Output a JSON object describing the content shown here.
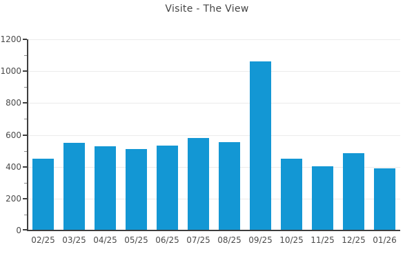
{
  "window": {
    "background": "#ffffff"
  },
  "chart_data": {
    "type": "bar",
    "title": "Visite - The View",
    "categories": [
      "02/25",
      "03/25",
      "04/25",
      "05/25",
      "06/25",
      "07/25",
      "08/25",
      "09/25",
      "10/25",
      "11/25",
      "12/25",
      "01/26"
    ],
    "values": [
      450,
      550,
      530,
      510,
      535,
      580,
      555,
      1060,
      450,
      405,
      485,
      390
    ],
    "xlabel": "",
    "ylabel": "",
    "ylim": [
      0,
      1200
    ],
    "yticks": [
      0,
      200,
      400,
      600,
      800,
      1000,
      1200
    ],
    "minor_tick_step": 100,
    "grid": "horizontal-major",
    "legend": "none",
    "colors": {
      "bar": "#1397d4",
      "axis": "#3d3d3d",
      "grid": "#ebebeb",
      "minor_tick": "#8a8a8a",
      "tick_label": "#4a4a4a",
      "title": "#444444",
      "background": "#ffffff"
    }
  }
}
